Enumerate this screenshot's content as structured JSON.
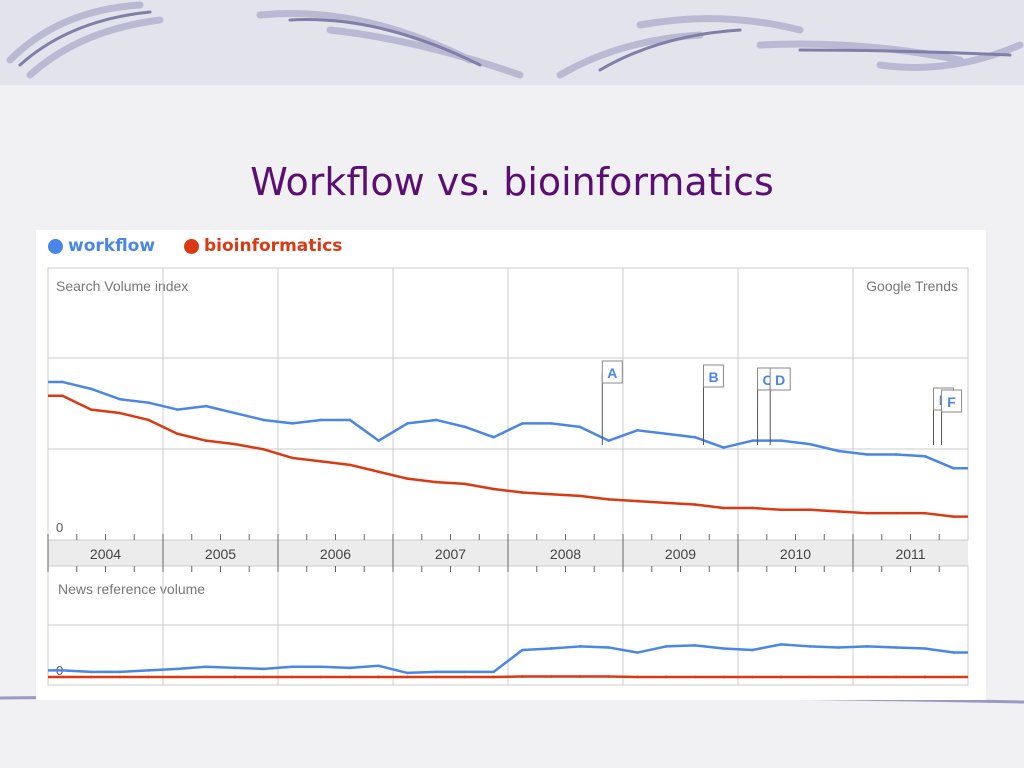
{
  "slide": {
    "title": "Workflow vs. bioinformatics"
  },
  "chart_data": {
    "type": "line",
    "source_label": "Google Trends",
    "legend": [
      {
        "name": "workflow",
        "color": "#4a86e8"
      },
      {
        "name": "bioinformatics",
        "color": "#dc3912"
      }
    ],
    "legend_placement": "top-left",
    "years": [
      "2004",
      "2005",
      "2006",
      "2007",
      "2008",
      "2009",
      "2010",
      "2011"
    ],
    "x_resolution": "quarterly",
    "search": {
      "label": "Search Volume index",
      "zero_label": "0",
      "ylim": [
        0,
        150
      ],
      "series": [
        {
          "name": "workflow",
          "values": [
            84,
            80,
            74,
            72,
            68,
            70,
            66,
            62,
            60,
            62,
            62,
            50,
            60,
            62,
            58,
            52,
            60,
            60,
            58,
            50,
            56,
            54,
            52,
            46,
            50,
            50,
            48,
            44,
            42,
            42,
            41,
            34
          ]
        },
        {
          "name": "bioinformatics",
          "values": [
            76,
            68,
            66,
            62,
            54,
            50,
            48,
            45,
            40,
            38,
            36,
            32,
            28,
            26,
            25,
            22,
            20,
            19,
            18,
            16,
            15,
            14,
            13,
            11,
            11,
            10,
            10,
            9,
            8,
            8,
            8,
            6
          ]
        }
      ]
    },
    "news": {
      "label": "News reference volume",
      "zero_label": "0",
      "ylim": [
        0,
        220
      ],
      "series": [
        {
          "name": "workflow",
          "values": [
            15,
            12,
            12,
            15,
            18,
            22,
            20,
            18,
            22,
            22,
            20,
            24,
            10,
            12,
            12,
            12,
            55,
            58,
            62,
            60,
            50,
            62,
            64,
            58,
            55,
            66,
            62,
            60,
            62,
            60,
            58,
            50
          ]
        },
        {
          "name": "bioinformatics",
          "values": [
            2,
            2,
            2,
            2,
            2,
            2,
            2,
            2,
            2,
            2,
            2,
            2,
            2,
            2,
            2,
            2,
            3,
            3,
            3,
            3,
            2,
            2,
            2,
            2,
            2,
            2,
            2,
            2,
            2,
            2,
            2,
            2
          ]
        }
      ]
    },
    "annotations": [
      {
        "label": "A",
        "date": 2008.82
      },
      {
        "label": "B",
        "date": 2009.7
      },
      {
        "label": "C",
        "date": 2010.17
      },
      {
        "label": "D",
        "date": 2010.28
      },
      {
        "label": "E",
        "date": 2011.7
      },
      {
        "label": "F",
        "date": 2011.77
      }
    ],
    "grid": true
  }
}
